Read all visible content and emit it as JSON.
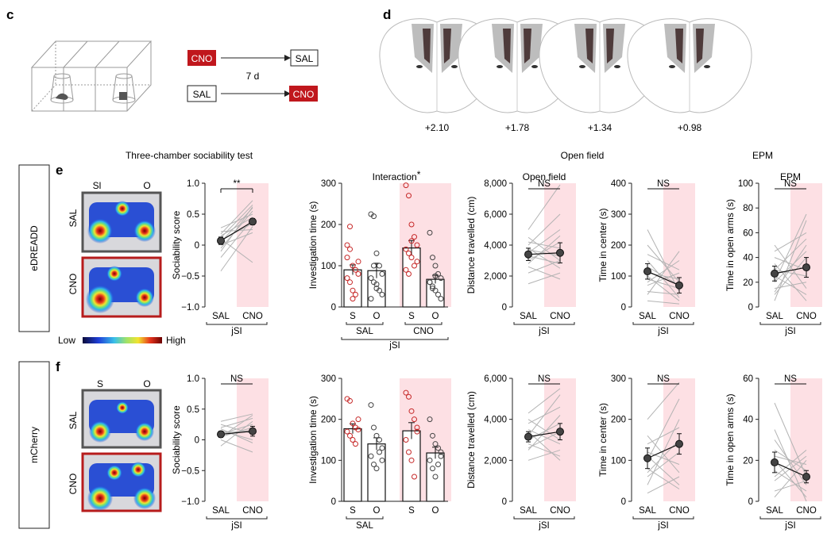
{
  "colors": {
    "sal_box": "#555555",
    "cno_box": "#b71c1c",
    "cno_fill": "#c0171d",
    "cno_shade": "#fde0e4",
    "sal_dot": "#c62828",
    "grey_line": "#b3b3b3",
    "mean_dot": "#444444"
  },
  "panel_c": {
    "letter": "c",
    "row1": {
      "left": "CNO",
      "right": "SAL"
    },
    "row2": {
      "left": "SAL",
      "right": "CNO"
    },
    "interval": "7 d"
  },
  "panel_d": {
    "letter": "d",
    "coords": [
      "+2.10",
      "+1.78",
      "+1.34",
      "+0.98"
    ]
  },
  "headers": {
    "three_chamber": "Three-chamber sociability test",
    "open_field": "Open field",
    "epm": "EPM"
  },
  "rows": [
    {
      "id": "e",
      "letter": "e",
      "group": "eDREADD",
      "heatmap": {
        "left_label": "Sl",
        "right_label": "O",
        "top": "SAL",
        "bottom": "CNO"
      }
    },
    {
      "id": "f",
      "letter": "f",
      "group": "mCherry",
      "heatmap": {
        "left_label": "S",
        "right_label": "O",
        "top": "SAL",
        "bottom": "CNO"
      }
    }
  ],
  "colorbar": {
    "low": "Low",
    "high": "High"
  },
  "chart_data": [
    {
      "panel": "e",
      "type": "line",
      "title": "",
      "ylabel": "Sociability score",
      "xlabel": "jSI",
      "categories": [
        "SAL",
        "CNO"
      ],
      "ylim": [
        -1.0,
        1.0
      ],
      "yticks": [
        "1.0",
        "0.5",
        "0",
        "−0.5",
        "−1.0"
      ],
      "mean": [
        0.07,
        0.38
      ],
      "sem": [
        0.06,
        0.05
      ],
      "sig": "**",
      "individual": [
        [
          -0.42,
          0.3
        ],
        [
          -0.2,
          0.42
        ],
        [
          -0.05,
          0.55
        ],
        [
          0.0,
          0.2
        ],
        [
          0.05,
          0.6
        ],
        [
          0.08,
          0.35
        ],
        [
          0.12,
          0.65
        ],
        [
          0.15,
          0.45
        ],
        [
          0.18,
          0.72
        ],
        [
          0.22,
          0.25
        ],
        [
          0.28,
          0.5
        ],
        [
          -0.1,
          0.62
        ],
        [
          0.1,
          -0.28
        ]
      ]
    },
    {
      "panel": "e",
      "type": "bar",
      "title": "Interaction",
      "title_mark": "*",
      "ylabel": "Investigation time (s)",
      "xlabel": "jSI",
      "categories": [
        "S",
        "O",
        "S",
        "O"
      ],
      "groups": [
        "SAL",
        "CNO"
      ],
      "ylim": [
        0,
        300
      ],
      "yticks": [
        "300",
        "200",
        "100",
        "0"
      ],
      "values": [
        90,
        88,
        143,
        67
      ],
      "sem": [
        12,
        18,
        18,
        10
      ],
      "points": [
        [
          150,
          195,
          100,
          90,
          80,
          70,
          60,
          40,
          30,
          110,
          120,
          140,
          20
        ],
        [
          225,
          220,
          130,
          100,
          80,
          70,
          60,
          45,
          40,
          30,
          20,
          100,
          55
        ],
        [
          295,
          270,
          200,
          170,
          150,
          140,
          130,
          120,
          100,
          110,
          90,
          80,
          160
        ],
        [
          180,
          120,
          100,
          80,
          70,
          60,
          50,
          40,
          30,
          20,
          60,
          45,
          75
        ]
      ]
    },
    {
      "panel": "e",
      "type": "line",
      "title": "Open field",
      "ylabel": "Distance travelled (cm)",
      "xlabel": "jSI",
      "categories": [
        "SAL",
        "CNO"
      ],
      "ylim": [
        0,
        8000
      ],
      "yticks": [
        "8,000",
        "6,000",
        "4,000",
        "2,000",
        "0"
      ],
      "mean": [
        3400,
        3500
      ],
      "sem": [
        400,
        650
      ],
      "sig": "NS",
      "individual": [
        [
          1500,
          2200
        ],
        [
          2200,
          3000
        ],
        [
          2600,
          1800
        ],
        [
          3000,
          4200
        ],
        [
          3300,
          2800
        ],
        [
          3500,
          5000
        ],
        [
          3700,
          3300
        ],
        [
          4000,
          6000
        ],
        [
          4200,
          3800
        ],
        [
          5000,
          7900
        ],
        [
          2800,
          4600
        ],
        [
          3800,
          2500
        ],
        [
          4500,
          3000
        ]
      ]
    },
    {
      "panel": "e",
      "type": "line",
      "title": "",
      "ylabel": "Time in center (s)",
      "xlabel": "jSI",
      "categories": [
        "SAL",
        "CNO"
      ],
      "ylim": [
        0,
        400
      ],
      "yticks": [
        "400",
        "300",
        "200",
        "100",
        "0"
      ],
      "mean": [
        115,
        70
      ],
      "sem": [
        25,
        25
      ],
      "sig": "NS",
      "individual": [
        [
          20,
          10
        ],
        [
          50,
          40
        ],
        [
          70,
          110
        ],
        [
          90,
          60
        ],
        [
          100,
          20
        ],
        [
          110,
          90
        ],
        [
          130,
          70
        ],
        [
          150,
          30
        ],
        [
          170,
          120
        ],
        [
          200,
          80
        ],
        [
          250,
          50
        ],
        [
          40,
          180
        ],
        [
          80,
          150
        ]
      ]
    },
    {
      "panel": "e",
      "type": "line",
      "title": "EPM",
      "ylabel": "Time in open arms (s)",
      "xlabel": "jSI",
      "categories": [
        "SAL",
        "CNO"
      ],
      "ylim": [
        0,
        100
      ],
      "yticks": [
        "100",
        "80",
        "60",
        "40",
        "20",
        "0"
      ],
      "mean": [
        27,
        32
      ],
      "sem": [
        6,
        8
      ],
      "sig": "NS",
      "individual": [
        [
          5,
          70
        ],
        [
          10,
          40
        ],
        [
          15,
          20
        ],
        [
          20,
          75
        ],
        [
          25,
          10
        ],
        [
          30,
          55
        ],
        [
          35,
          5
        ],
        [
          40,
          30
        ],
        [
          45,
          60
        ],
        [
          50,
          15
        ],
        [
          20,
          45
        ],
        [
          30,
          25
        ],
        [
          12,
          50
        ]
      ]
    },
    {
      "panel": "f",
      "type": "line",
      "title": "",
      "ylabel": "Sociability score",
      "xlabel": "jSI",
      "categories": [
        "SAL",
        "CNO"
      ],
      "ylim": [
        -1.0,
        1.0
      ],
      "yticks": [
        "1.0",
        "0.5",
        "0",
        "−0.5",
        "−1.0"
      ],
      "mean": [
        0.09,
        0.14
      ],
      "sem": [
        0.05,
        0.08
      ],
      "sig": "NS",
      "individual": [
        [
          -0.1,
          0.3
        ],
        [
          0.0,
          -0.2
        ],
        [
          0.05,
          0.4
        ],
        [
          0.1,
          0.25
        ],
        [
          0.15,
          0.0
        ],
        [
          0.2,
          0.35
        ],
        [
          0.25,
          0.1
        ],
        [
          0.3,
          0.42
        ],
        [
          0.05,
          0.2
        ],
        [
          0.18,
          -0.05
        ],
        [
          0.12,
          0.15
        ]
      ]
    },
    {
      "panel": "f",
      "type": "bar",
      "title": "",
      "ylabel": "Investigation time (s)",
      "xlabel": "",
      "categories": [
        "S",
        "O",
        "S",
        "O"
      ],
      "groups": [
        "SAL",
        "CNO"
      ],
      "ylim": [
        0,
        300
      ],
      "yticks": [
        "300",
        "200",
        "100",
        "0"
      ],
      "values": [
        177,
        140,
        172,
        118
      ],
      "sem": [
        12,
        15,
        20,
        14
      ],
      "points": [
        [
          250,
          245,
          190,
          180,
          175,
          170,
          160,
          150,
          140,
          200
        ],
        [
          235,
          180,
          160,
          150,
          130,
          110,
          90,
          80,
          120,
          100
        ],
        [
          265,
          255,
          220,
          200,
          180,
          150,
          120,
          100,
          60,
          170
        ],
        [
          200,
          160,
          140,
          130,
          110,
          100,
          80,
          60,
          90,
          120
        ]
      ]
    },
    {
      "panel": "f",
      "type": "line",
      "title": "",
      "ylabel": "Distance travelled (cm)",
      "xlabel": "jSI",
      "categories": [
        "SAL",
        "CNO"
      ],
      "ylim": [
        0,
        6000
      ],
      "yticks": [
        "6,000",
        "4,000",
        "2,000",
        "0"
      ],
      "mean": [
        3150,
        3400
      ],
      "sem": [
        250,
        400
      ],
      "sig": "NS",
      "individual": [
        [
          2000,
          2500
        ],
        [
          2500,
          4200
        ],
        [
          2800,
          2200
        ],
        [
          3000,
          3800
        ],
        [
          3200,
          5200
        ],
        [
          3500,
          2800
        ],
        [
          3800,
          4600
        ],
        [
          4000,
          3000
        ],
        [
          4300,
          5500
        ],
        [
          2600,
          3400
        ],
        [
          3400,
          2000
        ]
      ]
    },
    {
      "panel": "f",
      "type": "line",
      "title": "",
      "ylabel": "Time in center (s)",
      "xlabel": "jSI",
      "categories": [
        "SAL",
        "CNO"
      ],
      "ylim": [
        0,
        300
      ],
      "yticks": [
        "300",
        "200",
        "100",
        "0"
      ],
      "mean": [
        105,
        140
      ],
      "sem": [
        25,
        25
      ],
      "sig": "NS",
      "individual": [
        [
          20,
          60
        ],
        [
          40,
          200
        ],
        [
          60,
          120
        ],
        [
          80,
          30
        ],
        [
          100,
          250
        ],
        [
          120,
          90
        ],
        [
          140,
          180
        ],
        [
          160,
          70
        ],
        [
          200,
          290
        ],
        [
          70,
          150
        ],
        [
          110,
          40
        ]
      ]
    },
    {
      "panel": "f",
      "type": "line",
      "title": "",
      "ylabel": "Time in open arms (s)",
      "xlabel": "jSI",
      "categories": [
        "SAL",
        "CNO"
      ],
      "ylim": [
        0,
        60
      ],
      "yticks": [
        "60",
        "40",
        "20",
        "0"
      ],
      "mean": [
        19,
        12
      ],
      "sem": [
        5,
        3
      ],
      "sig": "NS",
      "individual": [
        [
          2,
          20
        ],
        [
          5,
          10
        ],
        [
          10,
          22
        ],
        [
          15,
          5
        ],
        [
          20,
          2
        ],
        [
          25,
          15
        ],
        [
          30,
          8
        ],
        [
          48,
          12
        ],
        [
          35,
          0
        ],
        [
          12,
          25
        ],
        [
          22,
          18
        ]
      ]
    }
  ]
}
